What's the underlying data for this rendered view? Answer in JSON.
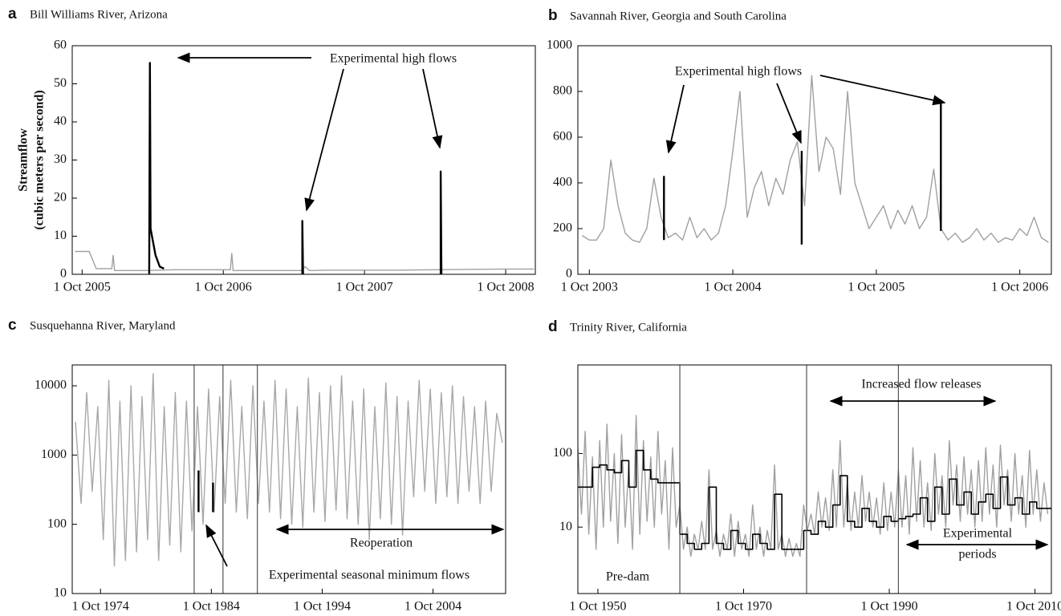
{
  "chart_data": [
    {
      "type": "line",
      "label": "a",
      "title": "Bill Williams River, Arizona",
      "ylabel": [
        "Streamflow",
        "(cubic meters per second)"
      ],
      "xlim": [
        2005.68,
        2008.96
      ],
      "ylim": [
        0,
        60
      ],
      "yscale": "linear",
      "xticks": [
        {
          "value": 2005.75,
          "label": "1 Oct 2005"
        },
        {
          "value": 2006.75,
          "label": "1 Oct 2006"
        },
        {
          "value": 2007.75,
          "label": "1 Oct 2007"
        },
        {
          "value": 2008.75,
          "label": "1 Oct 2008"
        }
      ],
      "yticks": [
        0,
        10,
        20,
        30,
        40,
        50,
        60
      ],
      "series": [
        {
          "color": "#a0a0a0",
          "x": [
            2005.7,
            2005.8,
            2005.85,
            2005.96,
            2005.97,
            2005.98,
            2006.1,
            2006.2,
            2006.4,
            2006.8,
            2006.81,
            2006.82,
            2007.0,
            2007.3,
            2007.33,
            2007.36,
            2007.5,
            2008.0,
            2008.5,
            2008.8,
            2008.95
          ],
          "values": [
            6,
            6,
            1.5,
            1.5,
            5,
            1,
            1,
            1,
            1.2,
            1.2,
            5.5,
            1,
            1,
            1,
            2,
            1,
            1.1,
            1.1,
            1.3,
            1.4,
            1.4
          ]
        },
        {
          "color": "#000000",
          "x": [
            2006.225,
            2006.23,
            2006.235,
            2006.27,
            2006.3,
            2006.33,
            null,
            2007.31,
            2007.31,
            2007.315,
            null,
            2008.29,
            2008.29,
            2008.295
          ],
          "values": [
            0,
            55.5,
            12,
            5,
            2,
            1.5,
            null,
            0,
            14,
            0,
            null,
            0,
            27,
            0
          ]
        }
      ],
      "annotations": [
        "Experimental high flows"
      ]
    },
    {
      "type": "line",
      "label": "b",
      "title": "Savannah River, Georgia and South Carolina",
      "xlim": [
        2003.67,
        2006.97
      ],
      "ylim": [
        0,
        1000
      ],
      "yscale": "linear",
      "xticks": [
        {
          "value": 2003.75,
          "label": "1 Oct 2003"
        },
        {
          "value": 2004.75,
          "label": "1 Oct 2004"
        },
        {
          "value": 2005.75,
          "label": "1 Oct 2005"
        },
        {
          "value": 2006.75,
          "label": "1 Oct 2006"
        }
      ],
      "yticks": [
        0,
        200,
        400,
        600,
        800,
        1000
      ],
      "series": [
        {
          "color": "#a0a0a0",
          "x": [
            2003.7,
            2003.75,
            2003.8,
            2003.85,
            2003.9,
            2003.95,
            2004.0,
            2004.05,
            2004.1,
            2004.15,
            2004.2,
            2004.25,
            2004.3,
            2004.35,
            2004.4,
            2004.45,
            2004.5,
            2004.55,
            2004.6,
            2004.65,
            2004.7,
            2004.75,
            2004.8,
            2004.85,
            2004.9,
            2004.95,
            2005.0,
            2005.05,
            2005.1,
            2005.15,
            2005.2,
            2005.25,
            2005.3,
            2005.35,
            2005.4,
            2005.45,
            2005.5,
            2005.55,
            2005.6,
            2005.65,
            2005.7,
            2005.75,
            2005.8,
            2005.85,
            2005.9,
            2005.95,
            2006.0,
            2006.05,
            2006.1,
            2006.15,
            2006.2,
            2006.25,
            2006.3,
            2006.35,
            2006.4,
            2006.45,
            2006.5,
            2006.55,
            2006.6,
            2006.65,
            2006.7,
            2006.75,
            2006.8,
            2006.85,
            2006.9,
            2006.95
          ],
          "values": [
            170,
            150,
            150,
            200,
            500,
            300,
            180,
            150,
            140,
            200,
            420,
            250,
            160,
            180,
            150,
            250,
            160,
            200,
            150,
            180,
            300,
            540,
            800,
            250,
            380,
            450,
            300,
            420,
            350,
            500,
            580,
            300,
            870,
            450,
            600,
            550,
            350,
            800,
            400,
            300,
            200,
            250,
            300,
            200,
            280,
            220,
            300,
            200,
            250,
            460,
            200,
            150,
            180,
            140,
            160,
            200,
            150,
            180,
            140,
            160,
            150,
            200,
            170,
            250,
            160,
            140
          ]
        },
        {
          "color": "#000000",
          "x": [
            2004.27,
            2004.27,
            null,
            2005.23,
            2005.23,
            null,
            2006.2,
            2006.2
          ],
          "values": [
            150,
            430,
            null,
            130,
            540,
            null,
            190,
            760
          ]
        }
      ],
      "annotations": [
        "Experimental high flows"
      ]
    },
    {
      "type": "line",
      "label": "c",
      "title": "Susquehanna River, Maryland",
      "xlim": [
        1972.2,
        2011.3
      ],
      "ylim": [
        10,
        20000
      ],
      "yscale": "log",
      "xticks": [
        {
          "value": 1974.75,
          "label": "1 Oct 1974"
        },
        {
          "value": 1984.75,
          "label": "1 Oct 1984"
        },
        {
          "value": 1994.75,
          "label": "1 Oct 1994"
        },
        {
          "value": 2004.75,
          "label": "1 Oct 2004"
        }
      ],
      "yticks": [
        10,
        100,
        1000,
        10000
      ],
      "vlines": [
        1983.2,
        1985.8,
        1988.9
      ],
      "series": [
        {
          "color": "#a8a8a8",
          "x": [
            1972.5,
            1973,
            1973.5,
            1974,
            1974.5,
            1975,
            1975.5,
            1976,
            1976.5,
            1977,
            1977.5,
            1978,
            1978.5,
            1979,
            1979.5,
            1980,
            1980.5,
            1981,
            1981.5,
            1982,
            1982.5,
            1983,
            1983.5,
            1984,
            1984.5,
            1985,
            1985.5,
            1986,
            1986.5,
            1987,
            1987.5,
            1988,
            1988.5,
            1989,
            1989.5,
            1990,
            1990.5,
            1991,
            1991.5,
            1992,
            1992.5,
            1993,
            1993.5,
            1994,
            1994.5,
            1995,
            1995.5,
            1996,
            1996.5,
            1997,
            1997.5,
            1998,
            1998.5,
            1999,
            1999.5,
            2000,
            2000.5,
            2001,
            2001.5,
            2002,
            2002.5,
            2003,
            2003.5,
            2004,
            2004.5,
            2005,
            2005.5,
            2006,
            2006.5,
            2007,
            2007.5,
            2008,
            2008.5,
            2009,
            2009.5,
            2010,
            2010.5,
            2011
          ],
          "values": [
            3000,
            200,
            8000,
            300,
            5000,
            60,
            12000,
            25,
            6000,
            30,
            10000,
            40,
            7000,
            60,
            15000,
            30,
            5000,
            50,
            8000,
            40,
            6000,
            80,
            5000,
            100,
            9000,
            150,
            7000,
            200,
            12000,
            150,
            5000,
            120,
            10000,
            200,
            6000,
            150,
            12000,
            120,
            9000,
            100,
            5000,
            90,
            13000,
            150,
            8000,
            110,
            10000,
            160,
            14000,
            120,
            6000,
            100,
            9000,
            60,
            5000,
            120,
            11000,
            100,
            7000,
            70,
            6000,
            250,
            12000,
            300,
            9000,
            200,
            8000,
            250,
            10000,
            200,
            7000,
            300,
            5000,
            200,
            6000,
            300,
            4000,
            1500
          ]
        },
        {
          "color": "#000000",
          "x": [
            1983.6,
            1983.6,
            null,
            1984.9,
            1984.9
          ],
          "values": [
            600,
            150,
            null,
            400,
            150
          ]
        }
      ],
      "annotations": [
        "Reoperation",
        "Experimental seasonal minimum flows"
      ]
    },
    {
      "type": "line",
      "label": "d",
      "title": "Trinity River, California",
      "xlim": [
        1948.0,
        2013.0
      ],
      "ylim": [
        1.25,
        1600
      ],
      "yscale": "log",
      "xticks": [
        {
          "value": 1950.75,
          "label": "1 Oct 1950"
        },
        {
          "value": 1970.75,
          "label": "1 Oct 1970"
        },
        {
          "value": 1990.75,
          "label": "1 Oct 1990"
        },
        {
          "value": 2010.75,
          "label": "1 Oct 2010"
        }
      ],
      "yticks": [
        10,
        100
      ],
      "vlines": [
        1962.0,
        1979.4,
        1992.0
      ],
      "series": [
        {
          "color": "#a0a0a0",
          "x": [
            1948,
            1948.5,
            1949,
            1949.5,
            1950,
            1950.5,
            1951,
            1951.5,
            1952,
            1952.5,
            1953,
            1953.5,
            1954,
            1954.5,
            1955,
            1955.5,
            1956,
            1956.5,
            1957,
            1957.5,
            1958,
            1958.5,
            1959,
            1959.5,
            1960,
            1960.5,
            1961,
            1961.5,
            1962,
            1962.5,
            1963,
            1963.5,
            1964,
            1964.5,
            1965,
            1965.5,
            1966,
            1966.5,
            1967,
            1967.5,
            1968,
            1968.5,
            1969,
            1969.5,
            1970,
            1970.5,
            1971,
            1971.5,
            1972,
            1972.5,
            1973,
            1973.5,
            1974,
            1974.5,
            1975,
            1975.5,
            1976,
            1976.5,
            1977,
            1977.5,
            1978,
            1978.5,
            1979,
            1979.5,
            1980,
            1980.5,
            1981,
            1981.5,
            1982,
            1982.5,
            1983,
            1983.5,
            1984,
            1984.5,
            1985,
            1985.5,
            1986,
            1986.5,
            1987,
            1987.5,
            1988,
            1988.5,
            1989,
            1989.5,
            1990,
            1990.5,
            1991,
            1991.5,
            1992,
            1992.5,
            1993,
            1993.5,
            1994,
            1994.5,
            1995,
            1995.5,
            1996,
            1996.5,
            1997,
            1997.5,
            1998,
            1998.5,
            1999,
            1999.5,
            2000,
            2000.5,
            2001,
            2001.5,
            2002,
            2002.5,
            2003,
            2003.5,
            2004,
            2004.5,
            2005,
            2005.5,
            2006,
            2006.5,
            2007,
            2007.5,
            2008,
            2008.5,
            2009,
            2009.5,
            2010,
            2010.5,
            2011,
            2011.5,
            2012,
            2012.5
          ],
          "values": [
            120,
            15,
            200,
            8,
            90,
            5,
            150,
            10,
            250,
            12,
            100,
            6,
            180,
            10,
            70,
            5,
            330,
            8,
            150,
            12,
            90,
            10,
            200,
            15,
            80,
            5,
            120,
            10,
            20,
            5,
            10,
            4,
            8,
            5,
            12,
            5,
            60,
            5,
            9,
            4,
            8,
            5,
            15,
            4,
            12,
            5,
            8,
            4,
            20,
            5,
            10,
            4,
            9,
            5,
            70,
            5,
            8,
            4,
            7,
            4,
            6,
            4,
            20,
            9,
            15,
            8,
            30,
            10,
            25,
            9,
            60,
            10,
            150,
            10,
            40,
            9,
            30,
            10,
            50,
            12,
            30,
            10,
            25,
            8,
            40,
            9,
            30,
            10,
            60,
            10,
            50,
            8,
            120,
            12,
            80,
            10,
            40,
            9,
            100,
            15,
            50,
            10,
            150,
            20,
            70,
            12,
            90,
            15,
            60,
            10,
            80,
            12,
            120,
            15,
            70,
            10,
            130,
            20,
            60,
            12,
            100,
            15,
            50,
            10,
            110,
            15,
            60,
            12,
            40,
            15
          ]
        },
        {
          "color": "#000000",
          "step": "post",
          "x": [
            1948,
            1949,
            1950,
            1951,
            1952,
            1953,
            1954,
            1955,
            1956,
            1957,
            1958,
            1959,
            1960,
            1961,
            1962,
            1963,
            1964,
            1965,
            1966,
            1967,
            1968,
            1969,
            1970,
            1971,
            1972,
            1973,
            1974,
            1975,
            1976,
            1977,
            1978,
            1979,
            1980,
            1981,
            1982,
            1983,
            1984,
            1985,
            1986,
            1987,
            1988,
            1989,
            1990,
            1991,
            1992,
            1993,
            1994,
            1995,
            1996,
            1997,
            1998,
            1999,
            2000,
            2001,
            2002,
            2003,
            2004,
            2005,
            2006,
            2007,
            2008,
            2009,
            2010,
            2011,
            2012
          ],
          "values": [
            35,
            35,
            65,
            70,
            60,
            55,
            80,
            35,
            110,
            60,
            45,
            40,
            40,
            40,
            8,
            6,
            5,
            6,
            35,
            6,
            5,
            9,
            6,
            5,
            8,
            6,
            5,
            28,
            5,
            5,
            5,
            9,
            8,
            12,
            10,
            20,
            50,
            12,
            10,
            18,
            12,
            10,
            14,
            12,
            13,
            14,
            15,
            25,
            12,
            35,
            15,
            45,
            20,
            30,
            15,
            22,
            28,
            18,
            48,
            20,
            25,
            15,
            22,
            18,
            18
          ]
        }
      ],
      "annotations": [
        "Pre-dam",
        "Increased flow releases",
        [
          "Experimental",
          "periods"
        ]
      ]
    }
  ]
}
